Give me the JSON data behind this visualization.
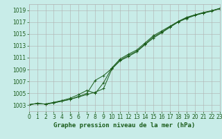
{
  "xlabel": "Graphe pression niveau de la mer (hPa)",
  "hours": [
    0,
    1,
    2,
    3,
    4,
    5,
    6,
    7,
    8,
    9,
    10,
    11,
    12,
    13,
    14,
    15,
    16,
    17,
    18,
    19,
    20,
    21,
    22,
    23
  ],
  "line1": [
    1003.1,
    1003.3,
    1003.2,
    1003.4,
    1003.7,
    1004.0,
    1004.4,
    1004.8,
    1005.2,
    1005.8,
    1009.1,
    1010.5,
    1011.2,
    1012.0,
    1013.2,
    1014.3,
    1015.2,
    1016.1,
    1017.0,
    1017.6,
    1018.1,
    1018.5,
    1018.8,
    1019.3
  ],
  "line2": [
    1003.1,
    1003.3,
    1003.2,
    1003.4,
    1003.7,
    1004.0,
    1004.5,
    1005.0,
    1007.2,
    1008.0,
    1009.2,
    1010.6,
    1011.4,
    1012.1,
    1013.3,
    1014.5,
    1015.3,
    1016.2,
    1017.1,
    1017.7,
    1018.2,
    1018.5,
    1018.9,
    1019.2
  ],
  "line3": [
    1003.1,
    1003.3,
    1003.2,
    1003.5,
    1003.8,
    1004.2,
    1004.8,
    1005.5,
    1005.0,
    1006.8,
    1009.3,
    1010.8,
    1011.6,
    1012.3,
    1013.5,
    1014.7,
    1015.5,
    1016.3,
    1017.1,
    1017.8,
    1018.2,
    1018.6,
    1018.9,
    1019.3
  ],
  "line_color": "#1a5c1a",
  "marker_color": "#1a5c1a",
  "bg_color": "#c8ece8",
  "grid_color": "#b0b0b0",
  "ylim_min": 1002.0,
  "ylim_max": 1020.0,
  "yticks": [
    1003,
    1005,
    1007,
    1009,
    1011,
    1013,
    1015,
    1017,
    1019
  ],
  "text_color": "#1a5c1a",
  "tick_fontsize": 5.5,
  "xlabel_fontsize": 6.5,
  "xlim_min": 0,
  "xlim_max": 23
}
